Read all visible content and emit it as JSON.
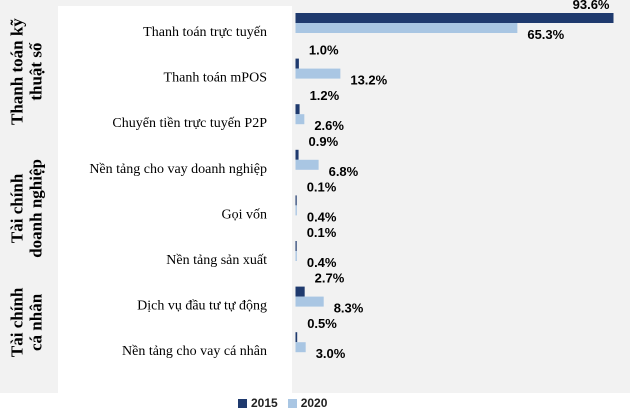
{
  "chart_data": {
    "type": "bar",
    "orientation": "horizontal",
    "groups": [
      {
        "label": "Thanh toán kỹ thuật số",
        "label_lines": [
          "Thanh toán kỹ",
          "thuật số"
        ],
        "categories": [
          0,
          1,
          2
        ]
      },
      {
        "label": "Tài chính doanh nghiệp",
        "label_lines": [
          "Tài chính",
          "doanh nghiệp"
        ],
        "categories": [
          3,
          4,
          5
        ]
      },
      {
        "label": "Tài chính cá nhân",
        "label_lines": [
          "Tài chính",
          "cá nhân"
        ],
        "categories": [
          6,
          7
        ]
      }
    ],
    "categories": [
      "Thanh toán trực tuyến",
      "Thanh toán mPOS",
      "Chuyển tiền trực tuyến P2P",
      "Nền tảng cho vay doanh nghiệp",
      "Gọi vốn",
      "Nền tảng sản xuất",
      "Dịch vụ đầu tư tự động",
      "Nền tảng cho vay cá nhân"
    ],
    "series": [
      {
        "name": "2015",
        "color": "#1f3a6e",
        "values": [
          93.6,
          1.0,
          1.2,
          0.9,
          0.1,
          0.1,
          2.7,
          0.5
        ],
        "labels": [
          "93.6%",
          "1.0%",
          "1.2%",
          "0.9%",
          "0.1%",
          "0.1%",
          "2.7%",
          "0.5%"
        ]
      },
      {
        "name": "2020",
        "color": "#a9c6e3",
        "values": [
          65.3,
          13.2,
          2.6,
          6.8,
          0.4,
          0.4,
          8.3,
          3.0
        ],
        "labels": [
          "65.3%",
          "13.2%",
          "2.6%",
          "6.8%",
          "0.4%",
          "0.4%",
          "8.3%",
          "3.0%"
        ]
      }
    ],
    "xlim": [
      0,
      93.6
    ],
    "grid": false,
    "legend_position": "bottom"
  }
}
